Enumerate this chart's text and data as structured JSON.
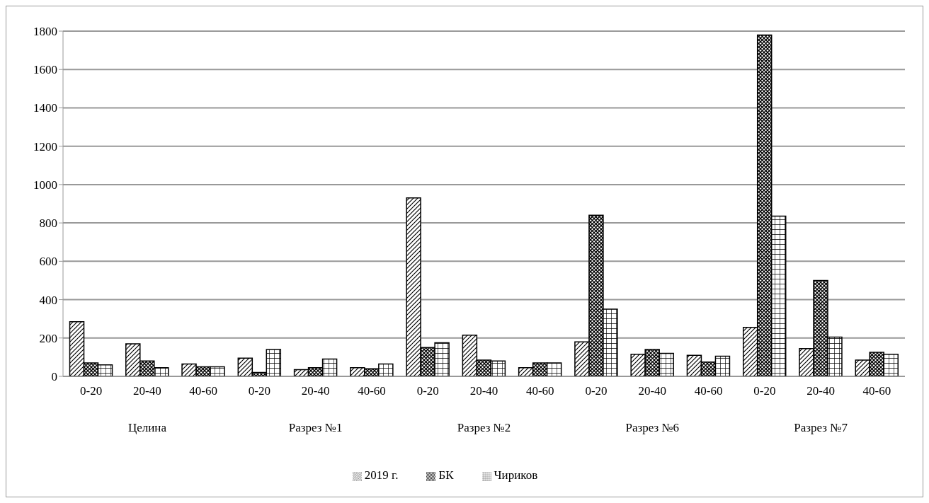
{
  "chart_data": {
    "type": "bar",
    "categories": [
      "0-20",
      "20-40",
      "40-60",
      "0-20",
      "20-40",
      "40-60",
      "0-20",
      "20-40",
      "40-60",
      "0-20",
      "20-40",
      "40-60",
      "0-20",
      "20-40",
      "40-60"
    ],
    "annotations": [
      "Целина",
      "Разрез №1",
      "Разрез №2",
      "Разрез №6",
      "Разрез №7"
    ],
    "series": [
      {
        "name": "2019 г.",
        "color": "#000000",
        "values": [
          285,
          170,
          65,
          95,
          35,
          45,
          930,
          215,
          45,
          180,
          115,
          110,
          255,
          145,
          85
        ]
      },
      {
        "name": "БК",
        "color": "#000000",
        "values": [
          70,
          80,
          50,
          20,
          45,
          40,
          150,
          85,
          70,
          840,
          140,
          75,
          1780,
          500,
          125
        ]
      },
      {
        "name": "Чириков",
        "color": "#000000",
        "values": [
          60,
          45,
          50,
          140,
          90,
          65,
          175,
          80,
          70,
          350,
          120,
          105,
          835,
          205,
          115
        ]
      }
    ],
    "ylim": [
      0,
      1800
    ],
    "yticks": [
      0,
      200,
      400,
      600,
      800,
      1000,
      1200,
      1400,
      1600,
      1800
    ],
    "grid": "y",
    "legend": "bottom"
  }
}
